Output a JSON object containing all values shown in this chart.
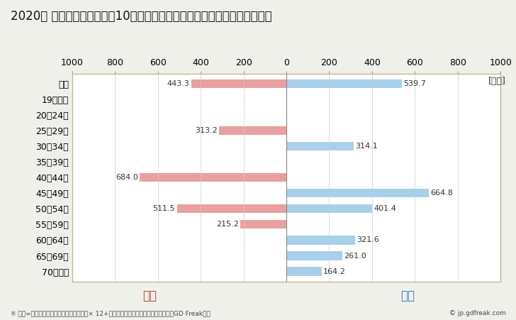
{
  "title": "2020年 民間企業（従業者数10人以上）フルタイム労働者の男女別平均年収",
  "ylabel_unit": "[万円]",
  "footnote": "※ 年収=「きまって支給する現金給与額」× 12+「年間賞与その他特別給与額」としてGD Freak推計",
  "copyright": "© jp.gdfreak.com",
  "categories": [
    "全体",
    "19歳以下",
    "20～24歳",
    "25～29歳",
    "30～34歳",
    "35～39歳",
    "40～44歳",
    "45～49歳",
    "50～54歳",
    "55～59歳",
    "60～64歳",
    "65～69歳",
    "70歳以上"
  ],
  "female_values": [
    443.3,
    0,
    0,
    313.2,
    0,
    0,
    684.0,
    0,
    511.5,
    215.2,
    0,
    0,
    0
  ],
  "male_values": [
    539.7,
    0,
    0,
    0,
    314.1,
    0,
    0,
    664.8,
    401.4,
    0,
    321.6,
    261.0,
    164.2
  ],
  "female_color": "#e8a0a0",
  "male_color": "#a8d0e8",
  "female_label": "女性",
  "male_label": "男性",
  "female_label_color": "#c0392b",
  "male_label_color": "#2980b9",
  "xlim": [
    -1000,
    1000
  ],
  "xticks": [
    -1000,
    -800,
    -600,
    -400,
    -200,
    0,
    200,
    400,
    600,
    800,
    1000
  ],
  "xticklabels": [
    "1000",
    "800",
    "600",
    "400",
    "200",
    "0",
    "200",
    "400",
    "600",
    "800",
    "1000"
  ],
  "background_color": "#f0f0eb",
  "plot_bg_color": "#ffffff",
  "border_color": "#c8b98a",
  "grid_color": "#cccccc",
  "title_fontsize": 12,
  "tick_fontsize": 9,
  "bar_height": 0.55
}
